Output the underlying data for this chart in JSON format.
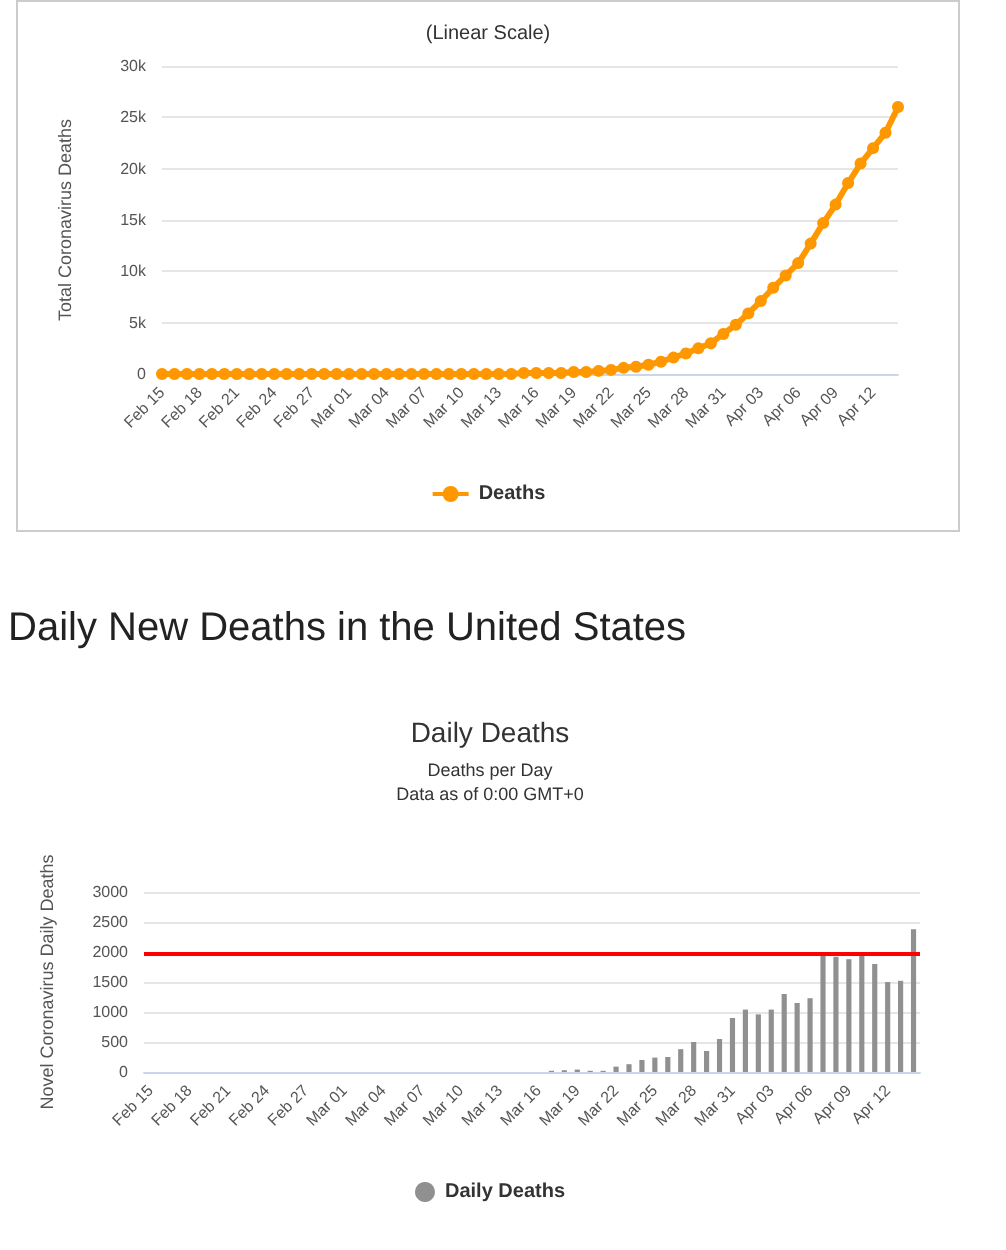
{
  "chart_data": [
    {
      "type": "line",
      "title": "(Linear Scale)",
      "ylabel": "Total Coronavirus Deaths",
      "categories": [
        "Feb 15",
        null,
        null,
        "Feb 18",
        null,
        null,
        "Feb 21",
        null,
        null,
        "Feb 24",
        null,
        null,
        "Feb 27",
        null,
        null,
        "Mar 01",
        null,
        null,
        "Mar 04",
        null,
        null,
        "Mar 07",
        null,
        null,
        "Mar 10",
        null,
        null,
        "Mar 13",
        null,
        null,
        "Mar 16",
        null,
        null,
        "Mar 19",
        null,
        null,
        "Mar 22",
        null,
        null,
        "Mar 25",
        null,
        null,
        "Mar 28",
        null,
        null,
        "Mar 31",
        null,
        null,
        "Apr 03",
        null,
        null,
        "Apr 06",
        null,
        null,
        "Apr 09",
        null,
        null,
        "Apr 12",
        null,
        null
      ],
      "series": [
        {
          "name": "Deaths",
          "color": "#ff9800",
          "values": [
            0,
            0,
            0,
            0,
            0,
            0,
            0,
            0,
            0,
            0,
            0,
            0,
            0,
            0,
            0,
            0,
            0,
            0,
            0,
            0,
            0,
            0,
            0,
            0,
            0,
            0,
            0,
            0,
            0,
            100,
            100,
            100,
            100,
            200,
            200,
            300,
            400,
            600,
            700,
            900,
            1200,
            1600,
            2000,
            2500,
            3000,
            3900,
            4800,
            5900,
            7100,
            8400,
            9600,
            10800,
            12700,
            14700,
            16500,
            18600,
            20500,
            22000,
            23500,
            26000
          ]
        }
      ],
      "ylim": [
        0,
        30000
      ],
      "yticks": [
        0,
        {
          "value": 5000,
          "label": "5k"
        },
        {
          "value": 10000,
          "label": "10k"
        },
        {
          "value": 15000,
          "label": "15k"
        },
        {
          "value": 20000,
          "label": "20k"
        },
        {
          "value": 25000,
          "label": "25k"
        },
        {
          "value": 30000,
          "label": "30k"
        }
      ],
      "grid": "y",
      "legend": "bottom",
      "marker": "circle"
    },
    {
      "type": "bar",
      "title": "Daily Deaths",
      "subtitle": "Deaths per Day\nData as of 0:00 GMT+0",
      "annotations": [
        "Daily New Deaths in the United States"
      ],
      "ylabel": "Novel Coronavirus Daily Deaths",
      "categories": [
        "Feb 15",
        null,
        null,
        "Feb 18",
        null,
        null,
        "Feb 21",
        null,
        null,
        "Feb 24",
        null,
        null,
        "Feb 27",
        null,
        null,
        "Mar 01",
        null,
        null,
        "Mar 04",
        null,
        null,
        "Mar 07",
        null,
        null,
        "Mar 10",
        null,
        null,
        "Mar 13",
        null,
        null,
        "Mar 16",
        null,
        null,
        "Mar 19",
        null,
        null,
        "Mar 22",
        null,
        null,
        "Mar 25",
        null,
        null,
        "Mar 28",
        null,
        null,
        "Mar 31",
        null,
        null,
        "Apr 03",
        null,
        null,
        "Apr 06",
        null,
        null,
        "Apr 09",
        null,
        null,
        "Apr 12",
        null,
        null
      ],
      "series": [
        {
          "name": "Daily Deaths",
          "color": "#909090",
          "values": [
            0,
            0,
            0,
            0,
            0,
            0,
            0,
            0,
            0,
            0,
            0,
            0,
            0,
            0,
            0,
            0,
            0,
            0,
            0,
            0,
            0,
            0,
            0,
            0,
            0,
            0,
            0,
            0,
            0,
            0,
            0,
            20,
            30,
            40,
            20,
            20,
            90,
            130,
            200,
            240,
            250,
            380,
            500,
            350,
            550,
            900,
            1040,
            960,
            1040,
            1300,
            1150,
            1230,
            1950,
            1920,
            1880,
            2000,
            1800,
            1500,
            1520,
            2380
          ]
        }
      ],
      "ylim": [
        0,
        3000
      ],
      "yticks": [
        0,
        500,
        1000,
        1500,
        2000,
        2500,
        3000
      ],
      "ref_lines": [
        {
          "axis": "y",
          "value": 1960,
          "color": "#ff0000"
        }
      ],
      "grid": "y",
      "legend": "bottom"
    }
  ]
}
